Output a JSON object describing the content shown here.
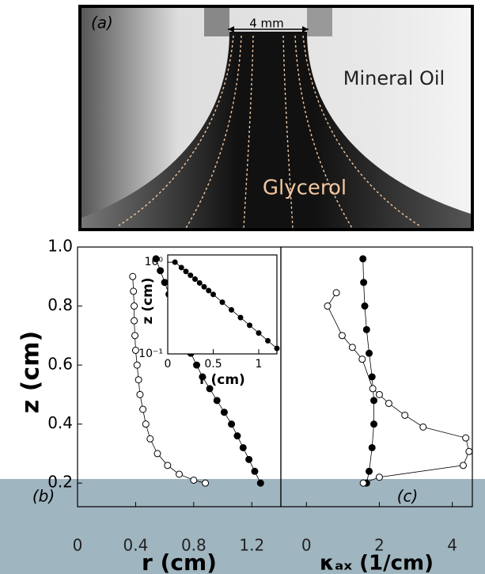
{
  "image_panel": {
    "label": "(a)",
    "scale": "4 mm",
    "upper_fluid": "Mineral Oil",
    "lower_fluid": "Glycerol"
  },
  "chart_data": [
    {
      "type": "scatter",
      "panel": "(b)",
      "xlabel": "r (cm)",
      "ylabel": "z (cm)",
      "xlim": [
        0,
        1.4
      ],
      "xticks": [
        0,
        0.4,
        0.8,
        1.2
      ],
      "ylim": [
        0.12,
        1.0
      ],
      "yticks": [
        0.2,
        0.4,
        0.6,
        0.8,
        {
          "value": 1,
          "label": "1.0"
        }
      ],
      "series": [
        {
          "color": "#000000",
          "fill": "#000000",
          "x": [
            0.54,
            0.57,
            0.6,
            0.63,
            0.66,
            0.69,
            0.72,
            0.75,
            0.78,
            0.82,
            0.86,
            0.91,
            0.96,
            1.01,
            1.06,
            1.1,
            1.14,
            1.18,
            1.22,
            1.26
          ],
          "values": [
            0.96,
            0.92,
            0.88,
            0.84,
            0.8,
            0.76,
            0.72,
            0.68,
            0.64,
            0.6,
            0.56,
            0.52,
            0.48,
            0.44,
            0.4,
            0.36,
            0.32,
            0.28,
            0.24,
            0.2
          ]
        },
        {
          "color": "#000000",
          "fill": "#ffffff",
          "x": [
            0.38,
            0.385,
            0.39,
            0.39,
            0.395,
            0.4,
            0.41,
            0.42,
            0.43,
            0.45,
            0.47,
            0.5,
            0.55,
            0.62,
            0.7,
            0.8,
            0.88
          ],
          "values": [
            0.9,
            0.85,
            0.8,
            0.75,
            0.7,
            0.65,
            0.6,
            0.55,
            0.5,
            0.45,
            0.4,
            0.35,
            0.3,
            0.26,
            0.23,
            0.21,
            0.2
          ]
        }
      ]
    },
    {
      "type": "scatter",
      "xlabel": "r (cm)",
      "ylabel": "z (cm)",
      "log_y": true,
      "xlim": [
        0,
        1.2
      ],
      "xticks": [
        0,
        0.5,
        1
      ],
      "ylim": [
        0.1,
        1.2
      ],
      "yticks": [
        {
          "value": 1,
          "label": "10⁰"
        },
        {
          "value": 0.1,
          "label": "10⁻¹"
        }
      ],
      "series": [
        {
          "color": "#000000",
          "fill": "#000000",
          "x": [
            0.08,
            0.15,
            0.2,
            0.25,
            0.3,
            0.35,
            0.4,
            0.45,
            0.5,
            0.6,
            0.7,
            0.8,
            0.9,
            1.0,
            1.1,
            1.2
          ],
          "values": [
            1.0,
            0.874,
            0.793,
            0.72,
            0.654,
            0.594,
            0.539,
            0.49,
            0.445,
            0.366,
            0.302,
            0.249,
            0.205,
            0.169,
            0.139,
            0.115
          ]
        }
      ]
    },
    {
      "type": "scatter",
      "panel": "(c)",
      "xlabel": "κₐₓ (1/cm)",
      "xlim": [
        -0.7,
        4.55
      ],
      "xticks": [
        0,
        2,
        4
      ],
      "ylim": [
        0.12,
        1.0
      ],
      "series": [
        {
          "color": "#000000",
          "fill": "#000000",
          "x": [
            1.55,
            1.57,
            1.6,
            1.65,
            1.72,
            1.8,
            1.85,
            1.85,
            1.8,
            1.72,
            1.65
          ],
          "values": [
            0.96,
            0.88,
            0.8,
            0.72,
            0.64,
            0.56,
            0.48,
            0.4,
            0.32,
            0.24,
            0.2
          ]
        },
        {
          "color": "#000000",
          "fill": "#ffffff",
          "x": [
            0.82,
            0.58,
            0.98,
            1.26,
            1.53,
            1.82,
            2.0,
            2.26,
            2.7,
            3.2,
            4.37,
            4.46,
            4.3,
            2.0,
            1.56
          ],
          "values": [
            0.845,
            0.8,
            0.7,
            0.66,
            0.62,
            0.52,
            0.5,
            0.47,
            0.43,
            0.39,
            0.353,
            0.307,
            0.26,
            0.22,
            0.2
          ]
        }
      ]
    }
  ]
}
